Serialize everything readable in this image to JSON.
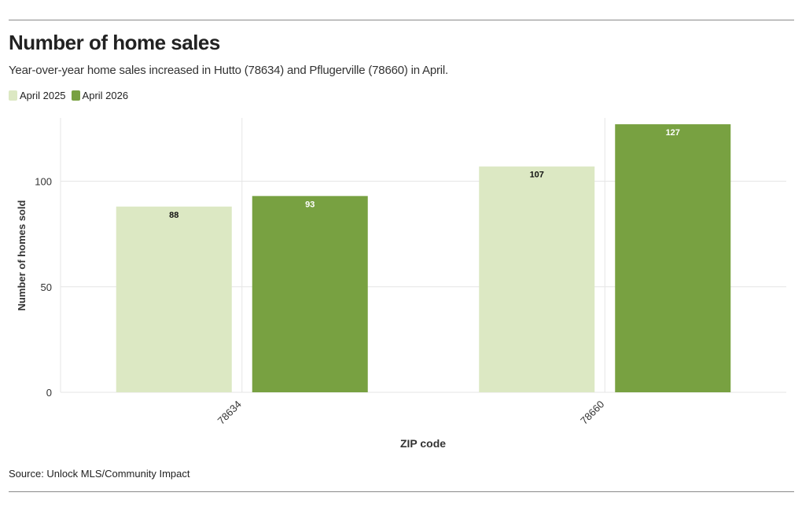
{
  "header": {
    "title": "Number of home sales",
    "subtitle": "Year-over-year home sales increased in Hutto (78634) and Pflugerville (78660) in April."
  },
  "footer": {
    "source": "Source: Unlock MLS/Community Impact"
  },
  "colors": {
    "april_2025": "#dce8c3",
    "april_2026": "#78a141",
    "grid": "#e6e6e6",
    "axis_text": "#333333",
    "label_dark": "#111111",
    "label_light": "#ffffff"
  },
  "chart_data": {
    "type": "bar",
    "categories": [
      "78634",
      "78660"
    ],
    "series": [
      {
        "name": "April 2025",
        "values": [
          88,
          107
        ],
        "color": "#dce8c3",
        "label_color": "#111111"
      },
      {
        "name": "April 2026",
        "values": [
          93,
          127
        ],
        "color": "#78a141",
        "label_color": "#ffffff"
      }
    ],
    "xlabel": "ZIP code",
    "ylabel": "Number of homes sold",
    "ylim": [
      0,
      130
    ],
    "yticks": [
      0,
      50,
      100
    ],
    "grid": true,
    "legend": "top-left",
    "data_labels": true
  }
}
